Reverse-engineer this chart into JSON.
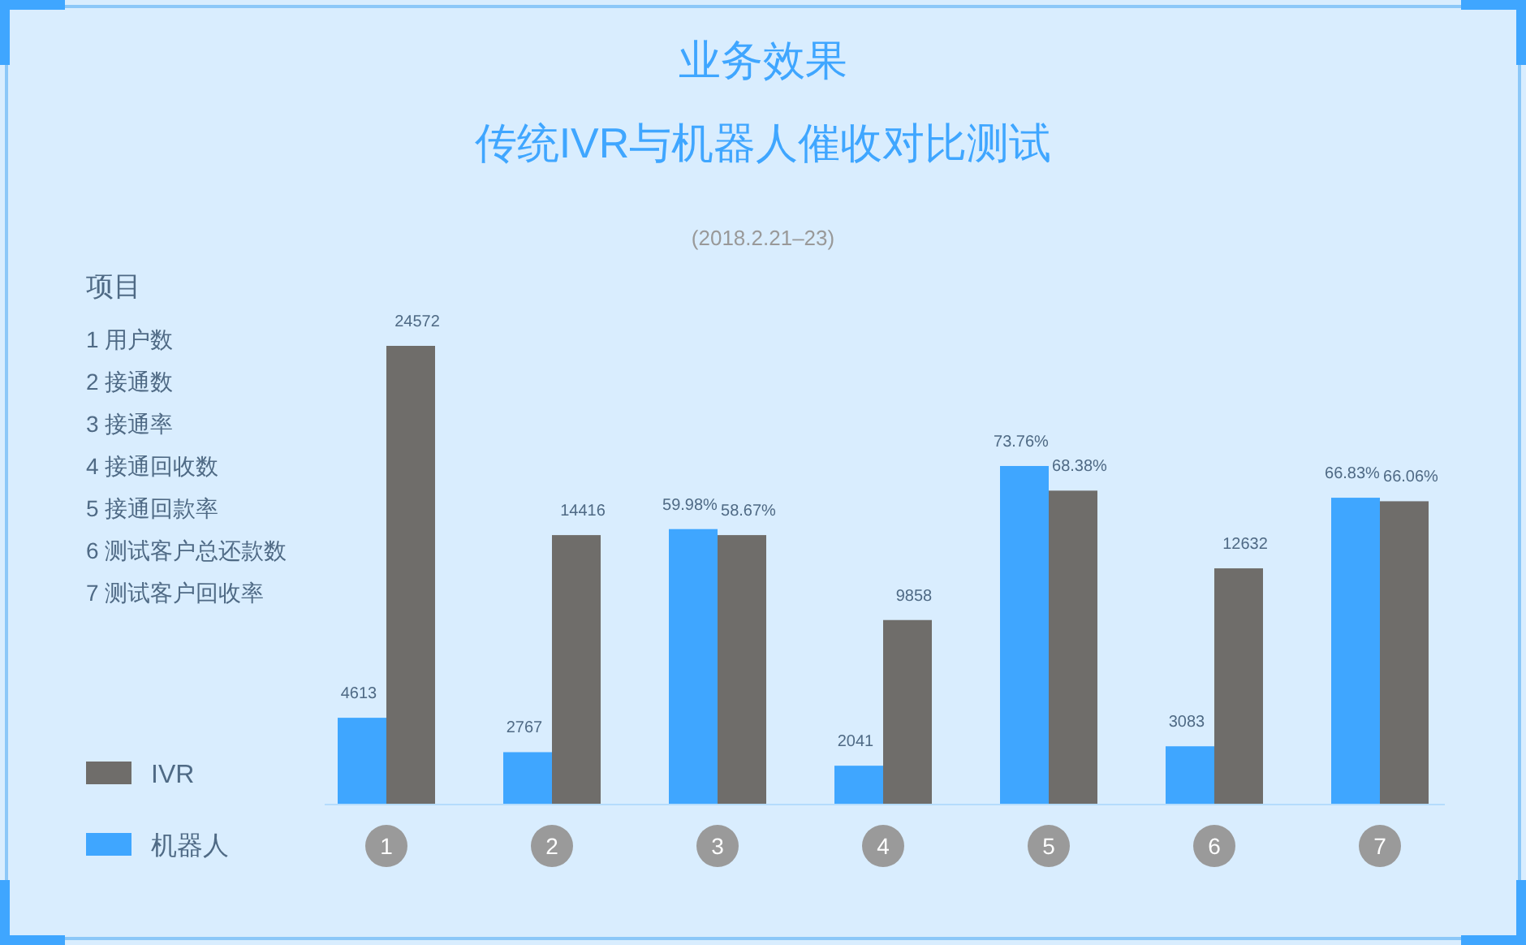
{
  "chart_data": {
    "type": "bar",
    "title": "业务效果",
    "subtitle": "传统IVR与机器人催收对比测试",
    "categories": [
      "1",
      "2",
      "3",
      "4",
      "5",
      "6",
      "7"
    ],
    "series": [
      {
        "name": "机器人",
        "color": "#3fa6ff",
        "values": [
          4613,
          2767,
          null,
          2041,
          null,
          3083,
          null
        ],
        "value_labels": [
          "4613",
          "2767",
          null,
          "2041",
          null,
          "3083",
          null
        ]
      },
      {
        "name": "IVR",
        "color": "#6f6d6a",
        "values": [
          24572,
          14416,
          null,
          9858,
          null,
          12632,
          null
        ],
        "value_labels": [
          "24572",
          "14416",
          null,
          "9858",
          null,
          "12632",
          null
        ]
      },
      {
        "color": "#3fa6ff",
        "axis": "y2",
        "values": [
          null,
          null,
          59.98,
          null,
          73.76,
          null,
          66.83
        ],
        "value_labels": [
          null,
          null,
          "59.98%",
          null,
          "73.76%",
          null,
          "66.83%"
        ]
      },
      {
        "color": "#6f6d6a",
        "axis": "y2",
        "values": [
          null,
          null,
          58.67,
          null,
          68.38,
          null,
          66.06
        ],
        "value_labels": [
          null,
          null,
          "58.67%",
          null,
          "68.38%",
          null,
          "66.06%"
        ]
      }
    ],
    "legend": "bottom left",
    "annotations": [
      "(2018.2.21–23)",
      "项目",
      "1 用户数",
      "2 接通数",
      "3 接通率",
      "4 接通回收数",
      "5 接通回款率",
      "6 测试客户总还款数",
      "7 测试客户回收率"
    ]
  }
}
